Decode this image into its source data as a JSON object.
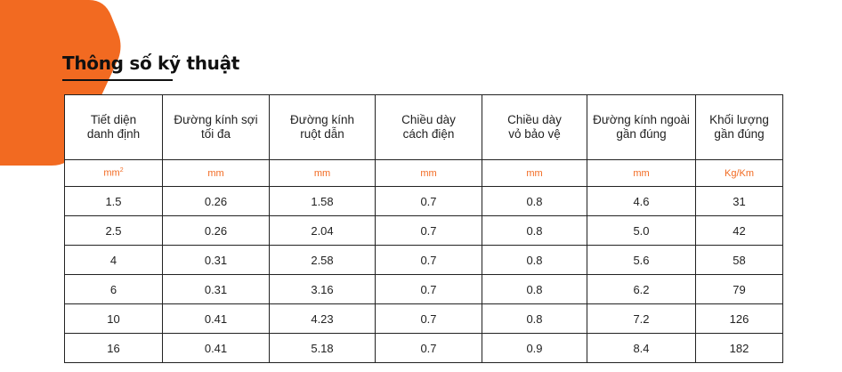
{
  "title": "Thông số kỹ thuật",
  "colors": {
    "accent": "#f26a21",
    "text": "#222222"
  },
  "table": {
    "headers": [
      {
        "line1": "Tiết diện",
        "line2": "danh định"
      },
      {
        "line1": "Đường kính sợi",
        "line2": "tối đa"
      },
      {
        "line1": "Đường kính",
        "line2": "ruột dẫn"
      },
      {
        "line1": "Chiều dày",
        "line2": "cách điện"
      },
      {
        "line1": "Chiều dày",
        "line2": "vỏ bảo vệ"
      },
      {
        "line1": "Đường kính ngoài",
        "line2": "gần đúng"
      },
      {
        "line1": "Khối lượng",
        "line2": "gần đúng"
      }
    ],
    "units": [
      {
        "base": "mm",
        "sup": "2"
      },
      {
        "base": "mm",
        "sup": ""
      },
      {
        "base": "mm",
        "sup": ""
      },
      {
        "base": "mm",
        "sup": ""
      },
      {
        "base": "mm",
        "sup": ""
      },
      {
        "base": "mm",
        "sup": ""
      },
      {
        "base": "Kg/Km",
        "sup": ""
      }
    ],
    "rows": [
      [
        "1.5",
        "0.26",
        "1.58",
        "0.7",
        "0.8",
        "4.6",
        "31"
      ],
      [
        "2.5",
        "0.26",
        "2.04",
        "0.7",
        "0.8",
        "5.0",
        "42"
      ],
      [
        "4",
        "0.31",
        "2.58",
        "0.7",
        "0.8",
        "5.6",
        "58"
      ],
      [
        "6",
        "0.31",
        "3.16",
        "0.7",
        "0.8",
        "6.2",
        "79"
      ],
      [
        "10",
        "0.41",
        "4.23",
        "0.7",
        "0.8",
        "7.2",
        "126"
      ],
      [
        "16",
        "0.41",
        "5.18",
        "0.7",
        "0.9",
        "8.4",
        "182"
      ]
    ]
  }
}
